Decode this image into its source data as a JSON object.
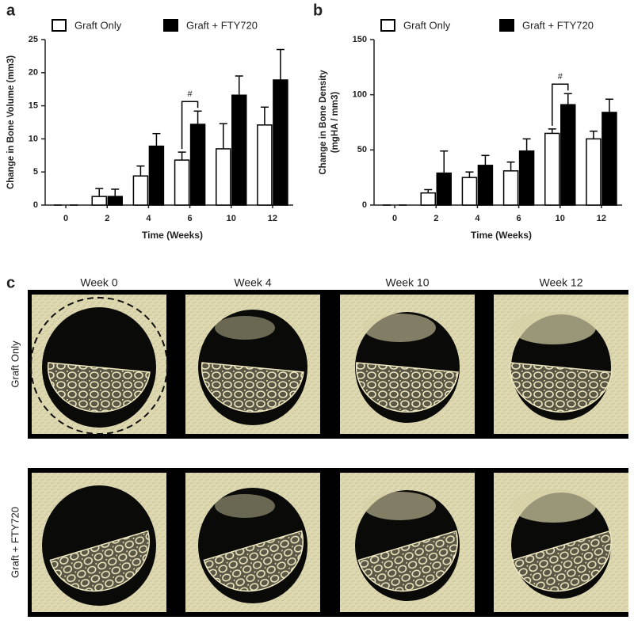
{
  "chart_data": [
    {
      "type": "bar",
      "panel_label": "a",
      "ylabel": [
        "Change in Bone Volume (mm3)"
      ],
      "xlabel": "Time (Weeks)",
      "categories": [
        "0",
        "2",
        "4",
        "6",
        "10",
        "12"
      ],
      "series": [
        {
          "name": "Graft Only",
          "color": "#ffffff",
          "values": [
            0,
            1.3,
            4.4,
            6.8,
            8.5,
            12.1
          ],
          "errors": [
            0,
            1.2,
            1.5,
            1.2,
            3.8,
            2.7
          ]
        },
        {
          "name": "Graft + FTY720",
          "color": "#000000",
          "values": [
            0,
            1.3,
            8.9,
            12.2,
            16.6,
            18.9
          ],
          "errors": [
            0,
            1.1,
            1.9,
            2.0,
            2.9,
            4.6
          ]
        }
      ],
      "ylim": [
        0,
        25
      ],
      "yticks": [
        0,
        5,
        10,
        15,
        20,
        25
      ],
      "annotations": [
        {
          "text": "#",
          "x": "6"
        }
      ]
    },
    {
      "type": "bar",
      "panel_label": "b",
      "ylabel": [
        "Change in Bone Density",
        "(mgHA / mm3)"
      ],
      "xlabel": "Time (Weeks)",
      "categories": [
        "0",
        "2",
        "4",
        "6",
        "10",
        "12"
      ],
      "series": [
        {
          "name": "Graft Only",
          "color": "#ffffff",
          "values": [
            0,
            11,
            25,
            31,
            65,
            60
          ],
          "errors": [
            0,
            3,
            5,
            8,
            4,
            7
          ]
        },
        {
          "name": "Graft + FTY720",
          "color": "#000000",
          "values": [
            0,
            29,
            36,
            49,
            91,
            84
          ],
          "errors": [
            0,
            20,
            9,
            11,
            10,
            12
          ]
        }
      ],
      "ylim": [
        0,
        150
      ],
      "yticks": [
        0,
        50,
        100,
        150
      ],
      "annotations": [
        {
          "text": "#",
          "x": "10"
        }
      ]
    }
  ],
  "image_panel": {
    "label": "c",
    "columns": [
      "Week 0",
      "Week 4",
      "Week 10",
      "Week 12"
    ],
    "rows": [
      "Graft Only",
      "Graft + FTY720"
    ]
  }
}
